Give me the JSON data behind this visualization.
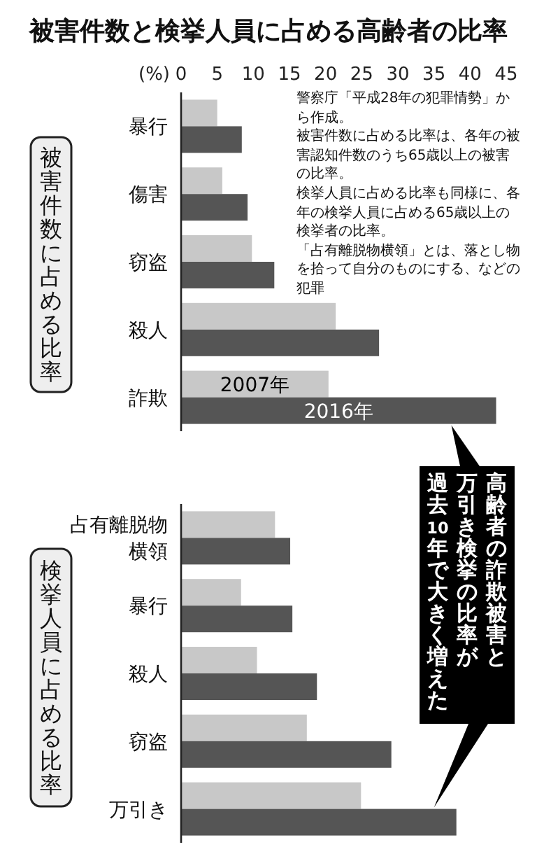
{
  "chart_data": [
    {
      "type": "bar",
      "orientation": "horizontal",
      "title": "被害件数と検挙人員に占める高齢者の比率",
      "xlabel": "(%)",
      "ylabel": "被害件数に占める比率",
      "categories": [
        "暴行",
        "傷害",
        "窃盗",
        "殺人",
        "詐欺"
      ],
      "series": [
        {
          "name": "2007年",
          "color": "#c8c8c8",
          "values": [
            5.0,
            5.7,
            9.8,
            21.4,
            20.4
          ]
        },
        {
          "name": "2016年",
          "color": "#555555",
          "values": [
            8.4,
            9.2,
            12.9,
            27.4,
            43.6
          ]
        }
      ],
      "xlim": [
        0,
        45
      ],
      "xticks": [
        0,
        5,
        10,
        15,
        20,
        25,
        30,
        35,
        40,
        45
      ],
      "annotations": [
        "警察庁「平成28年の犯罪情勢」から作成。",
        "被害件数に占める比率は、各年の被害認知件数のうち65歳以上の被害の比率。",
        "検挙人員に占める比率も同様に、各年の検挙人員に占める65歳以上の検挙者の比率。",
        "「占有離脱物横領」とは、落とし物を拾って自分のものにする、などの犯罪",
        "高齢者の詐欺被害と",
        "万引き検挙の比率が",
        "過去10年で大きく増えた"
      ]
    },
    {
      "type": "bar",
      "orientation": "horizontal",
      "ylabel": "検挙人員に占める比率",
      "categories": [
        "占有離脱物横領",
        "暴行",
        "殺人",
        "窃盗",
        "万引き"
      ],
      "series": [
        {
          "color": "#c8c8c8",
          "values": [
            13.0,
            8.3,
            10.5,
            17.4,
            24.9
          ]
        },
        {
          "color": "#555555",
          "values": [
            15.1,
            15.4,
            18.8,
            29.1,
            38.1
          ]
        }
      ],
      "xlim": [
        0,
        45
      ],
      "tick_labels": "y"
    }
  ]
}
